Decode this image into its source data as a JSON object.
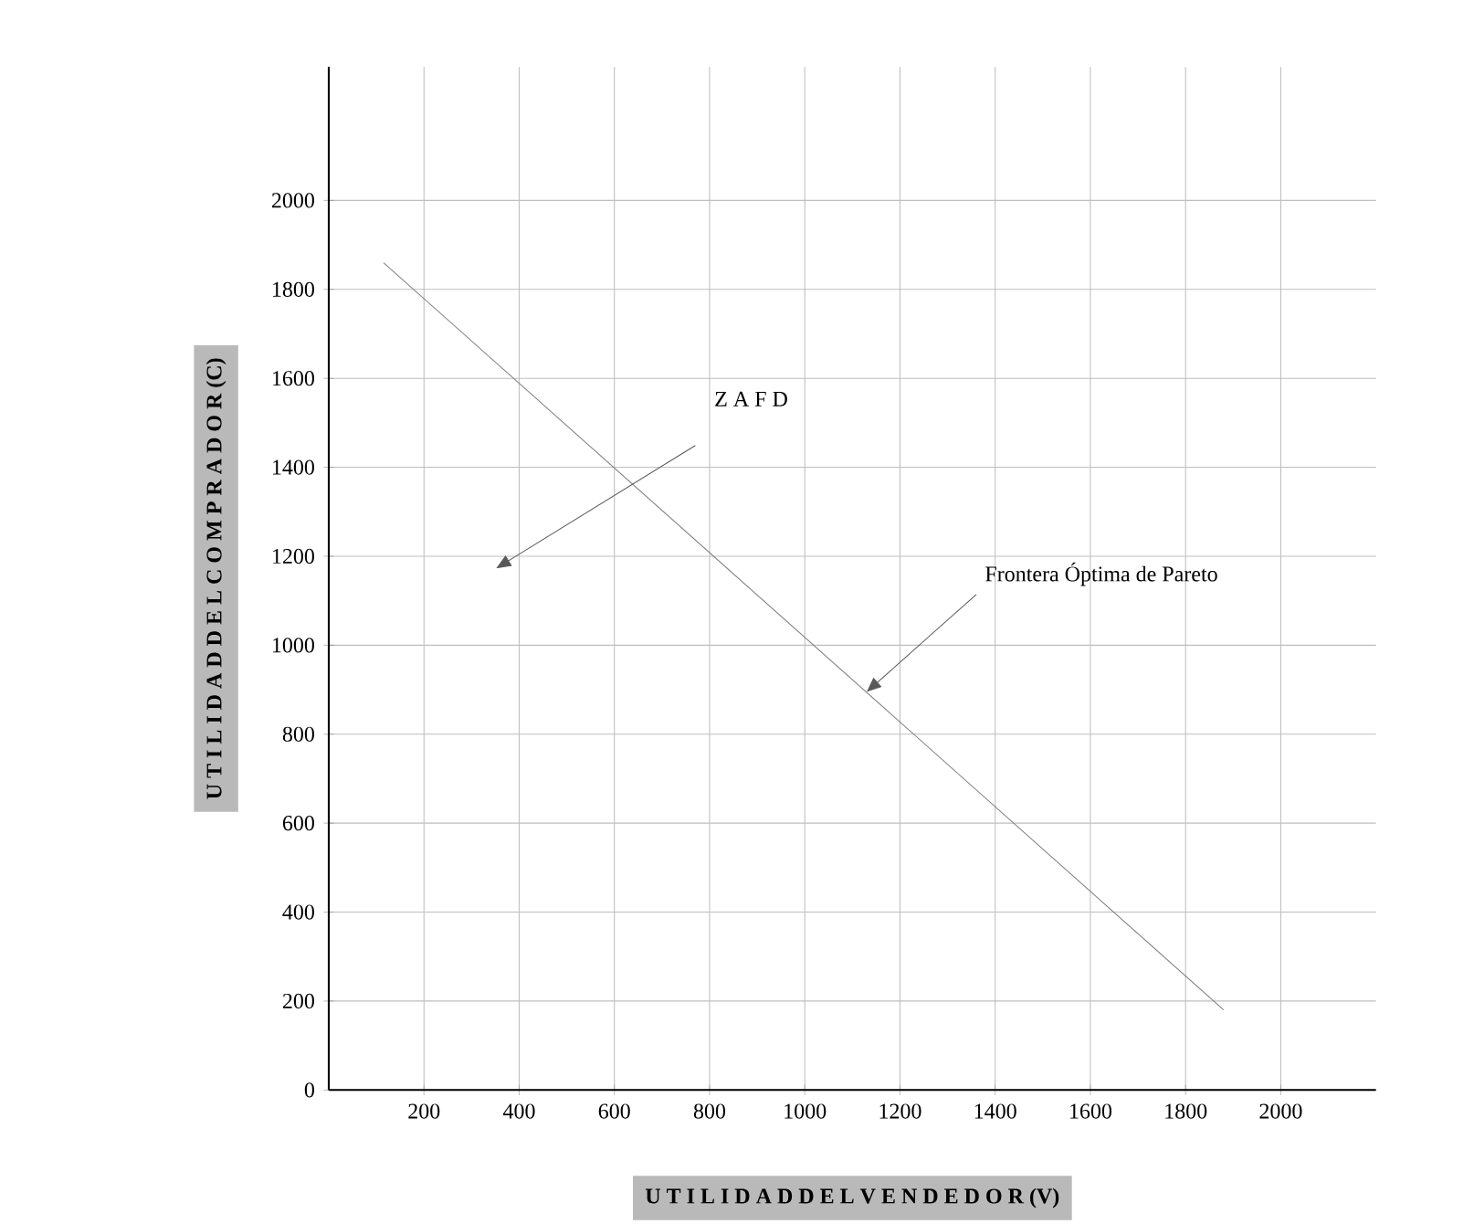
{
  "chart_data": {
    "type": "line",
    "xlabel": "U T I L I D A D   D E L   V E N D E D O R   (V)",
    "ylabel": "U T I L I D A D   D E L   C O M P R A D O R   (C)",
    "x": [
      115,
      1880
    ],
    "series": [
      {
        "color": "#808080",
        "values": [
          1860,
          180
        ]
      }
    ],
    "xlim": [
      0,
      2200
    ],
    "ylim": [
      0,
      2300
    ],
    "xticks": [
      200,
      400,
      600,
      800,
      1000,
      1200,
      1400,
      1600,
      1800,
      2000
    ],
    "yticks": [
      0,
      200,
      400,
      600,
      800,
      1000,
      1200,
      1400,
      1600,
      1800,
      2000
    ],
    "grid": true,
    "marker": "none",
    "line_style": "solid",
    "annotations": [
      "Z A F D",
      {
        "text": "Frontera Óptima de Pareto",
        "x": 1130,
        "y": 895
      }
    ]
  }
}
